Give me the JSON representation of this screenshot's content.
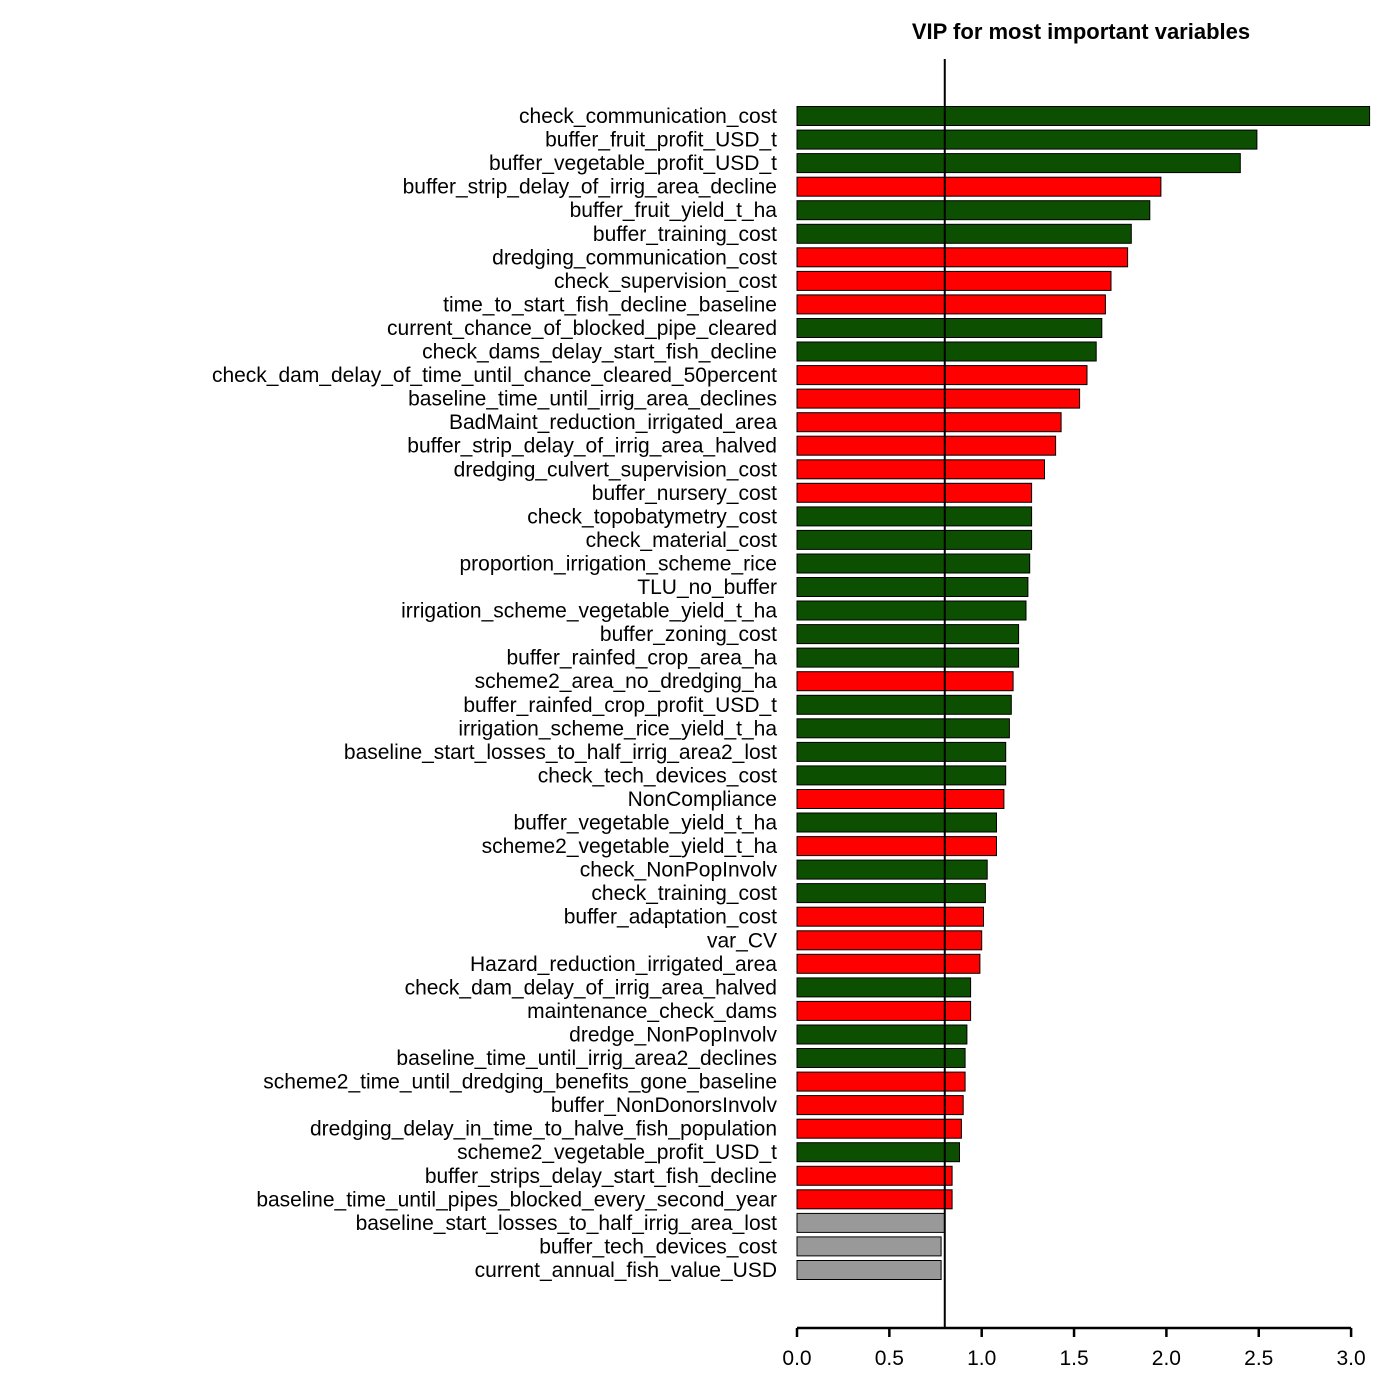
{
  "chart_data": {
    "type": "bar",
    "orientation": "horizontal",
    "title": "VIP for most important variables",
    "xlabel": "",
    "ylabel": "",
    "xlim": [
      0,
      3.0
    ],
    "xticks": [
      "0.0",
      "0.5",
      "1.0",
      "1.5",
      "2.0",
      "2.5",
      "3.0"
    ],
    "reference_line": 0.8,
    "grid": false,
    "colors": {
      "positive": "#0d4f00",
      "negative": "#ff0000",
      "neutral": "#999999",
      "bar_border": "#000000",
      "axis": "#000000"
    },
    "categories": [
      "check_communication_cost",
      "buffer_fruit_profit_USD_t",
      "buffer_vegetable_profit_USD_t",
      "buffer_strip_delay_of_irrig_area_decline",
      "buffer_fruit_yield_t_ha",
      "buffer_training_cost",
      "dredging_communication_cost",
      "check_supervision_cost",
      "time_to_start_fish_decline_baseline",
      "current_chance_of_blocked_pipe_cleared",
      "check_dams_delay_start_fish_decline",
      "check_dam_delay_of_time_until_chance_cleared_50percent",
      "baseline_time_until_irrig_area_declines",
      "BadMaint_reduction_irrigated_area",
      "buffer_strip_delay_of_irrig_area_halved",
      "dredging_culvert_supervision_cost",
      "buffer_nursery_cost",
      "check_topobatymetry_cost",
      "check_material_cost",
      "proportion_irrigation_scheme_rice",
      "TLU_no_buffer",
      "irrigation_scheme_vegetable_yield_t_ha",
      "buffer_zoning_cost",
      "buffer_rainfed_crop_area_ha",
      "scheme2_area_no_dredging_ha",
      "buffer_rainfed_crop_profit_USD_t",
      "irrigation_scheme_rice_yield_t_ha",
      "baseline_start_losses_to_half_irrig_area2_lost",
      "check_tech_devices_cost",
      "NonCompliance",
      "buffer_vegetable_yield_t_ha",
      "scheme2_vegetable_yield_t_ha",
      "check_NonPopInvolv",
      "check_training_cost",
      "buffer_adaptation_cost",
      "var_CV",
      "Hazard_reduction_irrigated_area",
      "check_dam_delay_of_irrig_area_halved",
      "maintenance_check_dams",
      "dredge_NonPopInvolv",
      "baseline_time_until_irrig_area2_declines",
      "scheme2_time_until_dredging_benefits_gone_baseline",
      "buffer_NonDonorsInvolv",
      "dredging_delay_in_time_to_halve_fish_population",
      "scheme2_vegetable_profit_USD_t",
      "buffer_strips_delay_start_fish_decline",
      "baseline_time_until_pipes_blocked_every_second_year",
      "baseline_start_losses_to_half_irrig_area_lost",
      "buffer_tech_devices_cost",
      "current_annual_fish_value_USD"
    ],
    "values": [
      3.1,
      2.49,
      2.4,
      1.97,
      1.91,
      1.81,
      1.79,
      1.7,
      1.67,
      1.65,
      1.62,
      1.57,
      1.53,
      1.43,
      1.4,
      1.34,
      1.27,
      1.27,
      1.27,
      1.26,
      1.25,
      1.24,
      1.2,
      1.2,
      1.17,
      1.16,
      1.15,
      1.13,
      1.13,
      1.12,
      1.08,
      1.08,
      1.03,
      1.02,
      1.01,
      1.0,
      0.99,
      0.94,
      0.94,
      0.92,
      0.91,
      0.91,
      0.9,
      0.89,
      0.88,
      0.84,
      0.84,
      0.8,
      0.78,
      0.78
    ],
    "bar_colors": [
      "positive",
      "positive",
      "positive",
      "negative",
      "positive",
      "positive",
      "negative",
      "negative",
      "negative",
      "positive",
      "positive",
      "negative",
      "negative",
      "negative",
      "negative",
      "negative",
      "negative",
      "positive",
      "positive",
      "positive",
      "positive",
      "positive",
      "positive",
      "positive",
      "negative",
      "positive",
      "positive",
      "positive",
      "positive",
      "negative",
      "positive",
      "negative",
      "positive",
      "positive",
      "negative",
      "negative",
      "negative",
      "positive",
      "negative",
      "positive",
      "positive",
      "negative",
      "negative",
      "negative",
      "positive",
      "negative",
      "negative",
      "neutral",
      "neutral",
      "neutral"
    ]
  }
}
